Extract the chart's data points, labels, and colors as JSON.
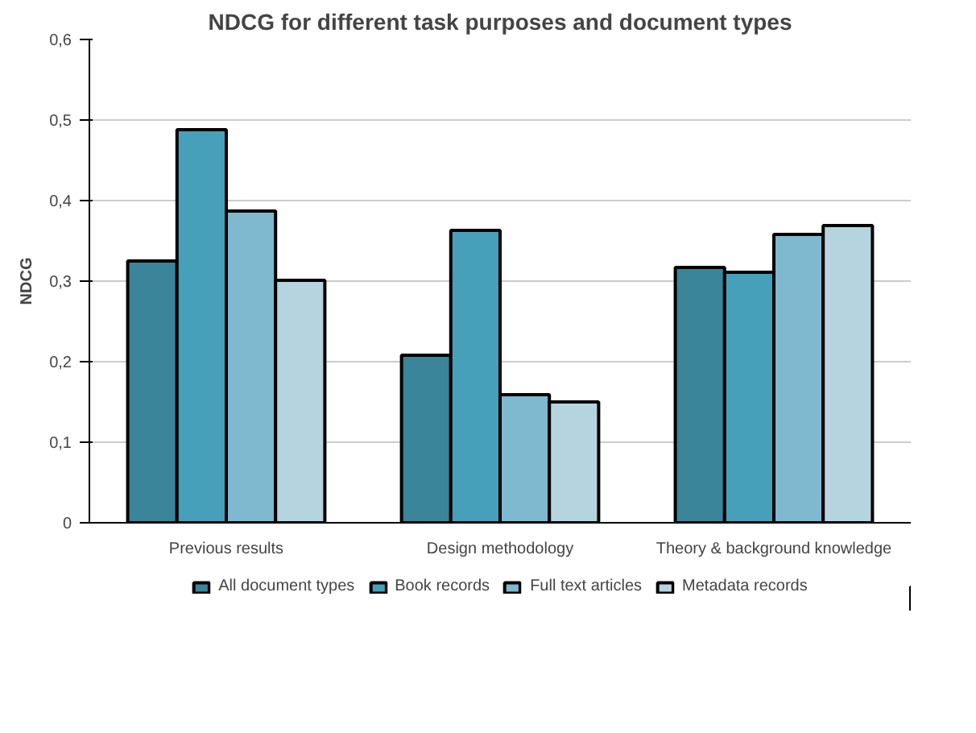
{
  "chart_data": {
    "type": "bar",
    "title": "NDCG for different task purposes and document types",
    "ylabel": "NDCG",
    "categories": [
      "Previous results",
      "Design methodology",
      "Theory & background knowledge"
    ],
    "series": [
      {
        "name": "All document types",
        "color": "#3a8599",
        "values": [
          0.325,
          0.208,
          0.317
        ]
      },
      {
        "name": "Book records",
        "color": "#47a0b9",
        "values": [
          0.488,
          0.363,
          0.311
        ]
      },
      {
        "name": "Full text articles",
        "color": "#7fb9cf",
        "values": [
          0.387,
          0.159,
          0.358
        ]
      },
      {
        "name": "Metadata records",
        "color": "#b5d4df",
        "values": [
          0.301,
          0.15,
          0.369
        ]
      }
    ],
    "ylim": [
      0,
      0.6
    ],
    "yticks": [
      0,
      {
        "value": 0.1,
        "label": "0,1"
      },
      {
        "value": 0.2,
        "label": "0,2"
      },
      {
        "value": 0.3,
        "label": "0,3"
      },
      {
        "value": 0.4,
        "label": "0,4"
      },
      {
        "value": 0.5,
        "label": "0,5"
      },
      {
        "value": 0.6,
        "label": "0,6"
      }
    ],
    "grid": "y",
    "legend": "bottom"
  }
}
